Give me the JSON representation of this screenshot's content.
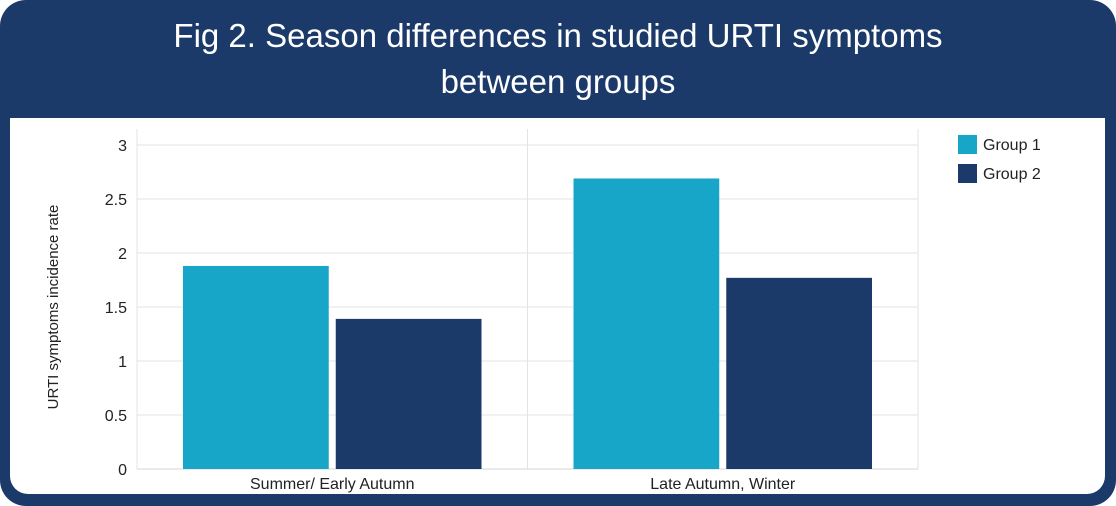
{
  "chart_data": {
    "type": "bar",
    "title": "Fig 2. Season differences in studied URTI symptoms between groups",
    "xlabel": "",
    "ylabel": "URTI symptoms incidence rate",
    "categories": [
      "Summer/ Early Autumn",
      "Late Autumn, Winter"
    ],
    "series": [
      {
        "name": "Group 1",
        "color": "#17a5c8",
        "values": [
          1.88,
          2.69
        ]
      },
      {
        "name": "Group 2",
        "color": "#1b3a69",
        "values": [
          1.39,
          1.77
        ]
      }
    ],
    "ylim": [
      0,
      3
    ],
    "yticks": [
      "0",
      "0.5",
      "1",
      "1.5",
      "2",
      "2.5",
      "3"
    ],
    "grid": true,
    "legend": "top-right"
  }
}
